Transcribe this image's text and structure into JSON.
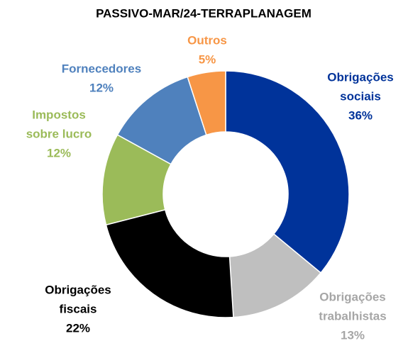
{
  "chart_data": {
    "type": "donut",
    "title": "PASSIVO-MAR/24-TERRAPLANAGEM",
    "categories": [
      [
        "Obrigações",
        "sociais"
      ],
      [
        "Obrigações",
        "trabalhistas"
      ],
      [
        "Obrigações",
        "fiscais"
      ],
      [
        "Impostos",
        "sobre lucro"
      ],
      [
        "Fornecedores"
      ],
      [
        "Outros"
      ]
    ],
    "values": [
      36,
      13,
      22,
      12,
      12,
      5
    ],
    "value_labels": [
      "36%",
      "13%",
      "22%",
      "12%",
      "12%",
      "5%"
    ],
    "colors": [
      "#00339a",
      "#bfbfbf",
      "#000000",
      "#9bbb59",
      "#4f81bd",
      "#f79646"
    ],
    "label_colors": [
      "#00339a",
      "#a6a6a6",
      "#000000",
      "#9bbb59",
      "#4f81bd",
      "#f79646"
    ]
  }
}
